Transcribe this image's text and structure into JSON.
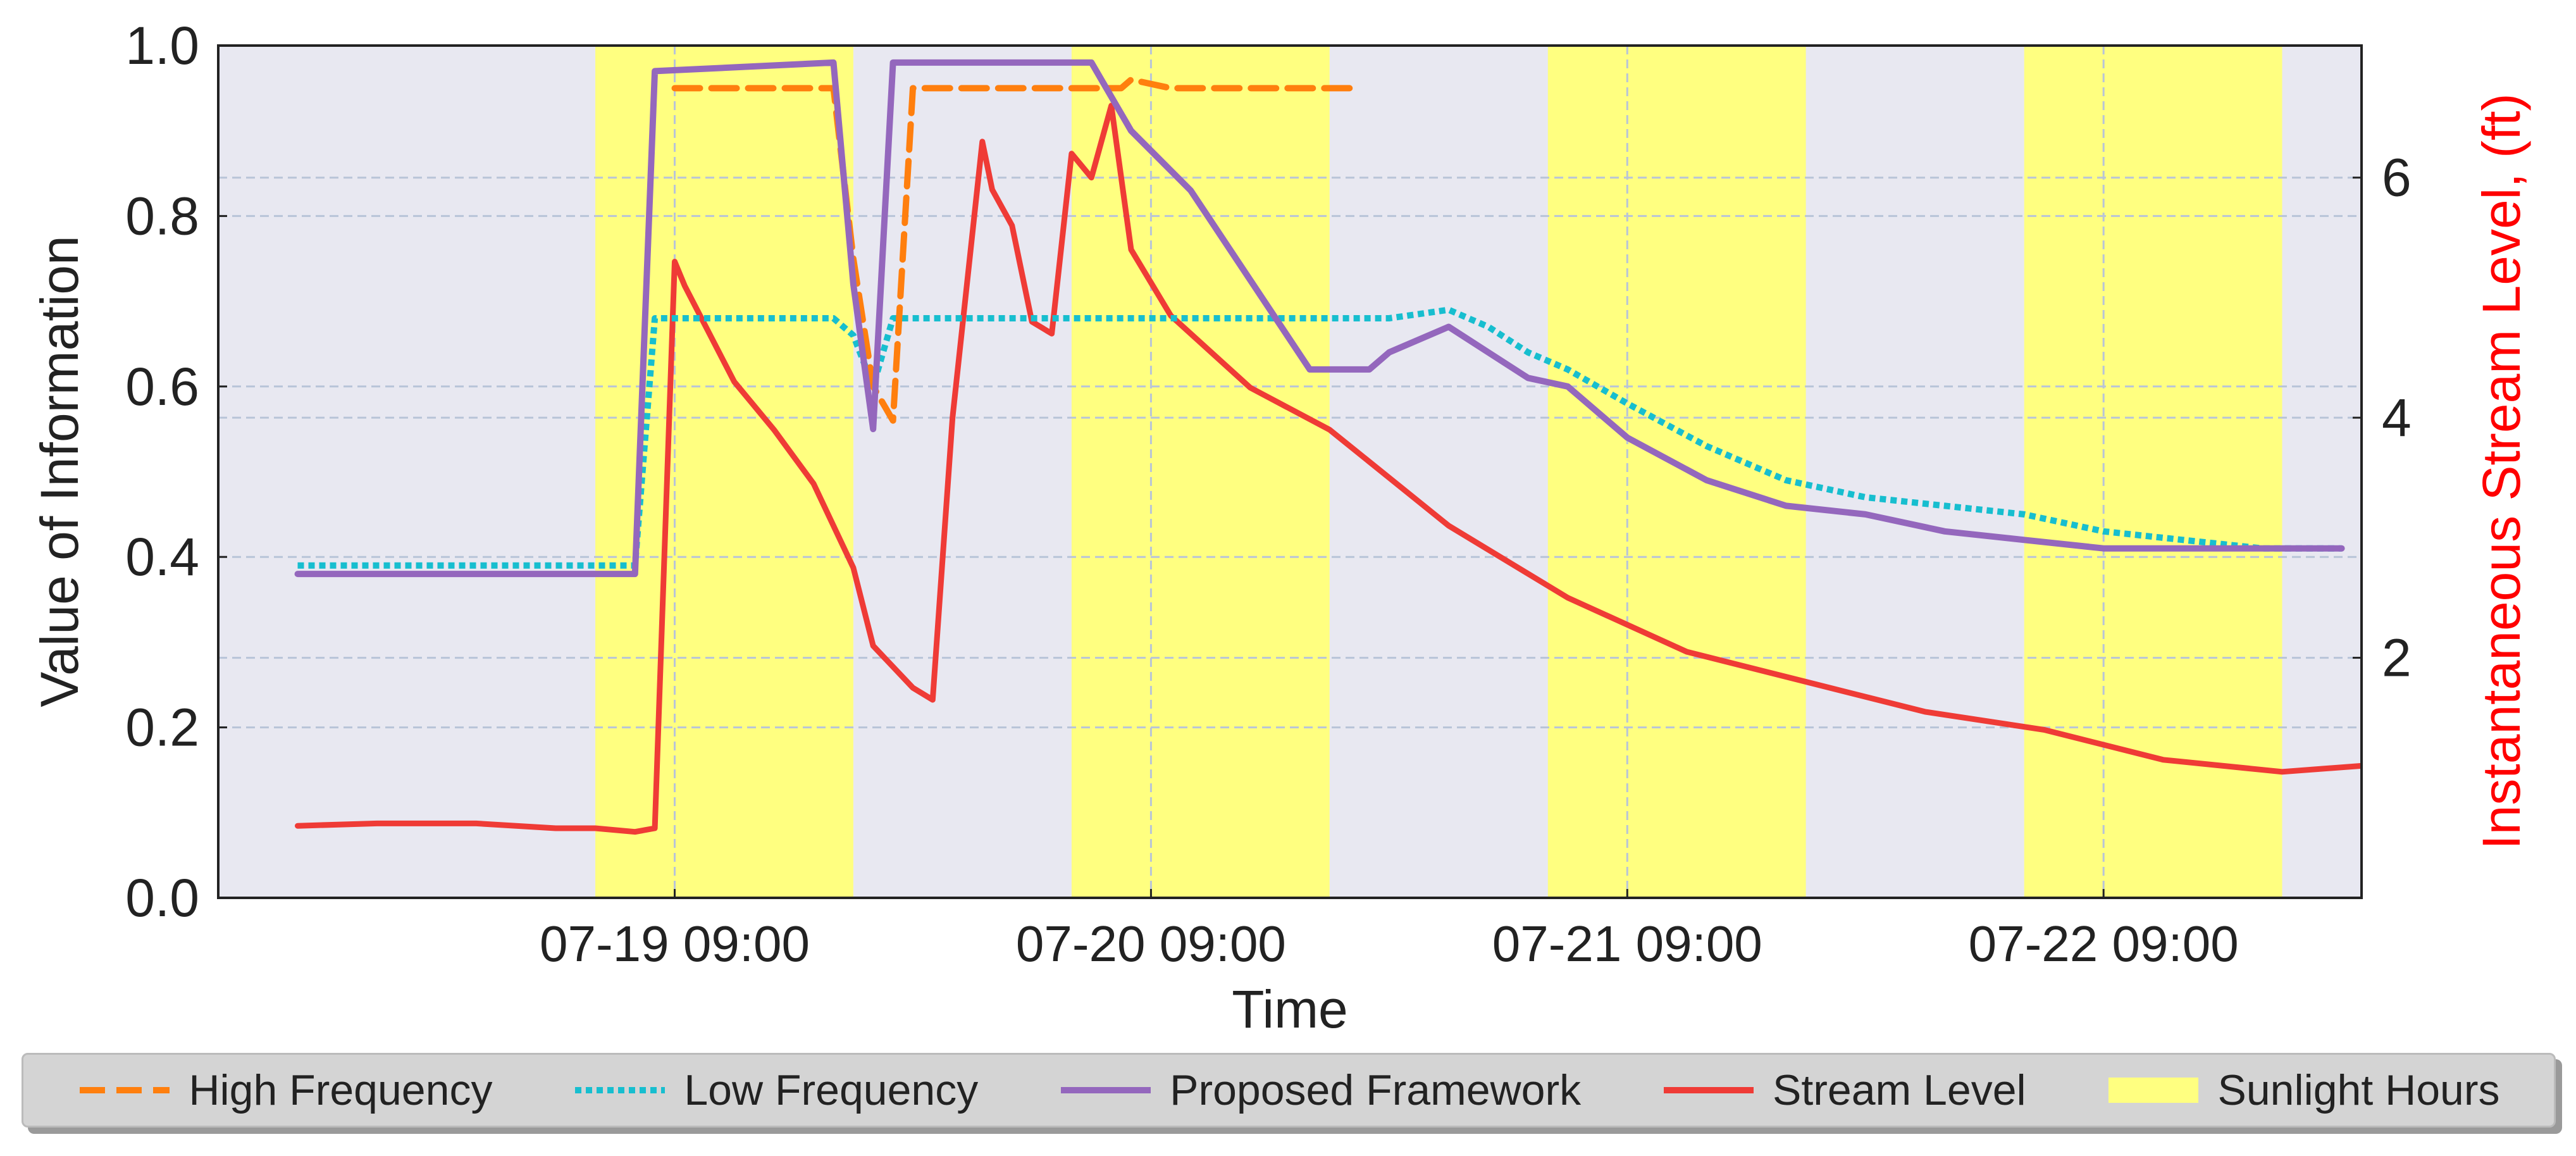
{
  "chart_data": {
    "type": "line",
    "xlabel": "Time",
    "ylabel": "Value of Information",
    "ylabel_right": "Instantaneous Stream Level, (ft)",
    "x_range": [
      "07-18 10:00",
      "07-22 22:00"
    ],
    "x_ticks": [
      "07-19 09:00",
      "07-20 09:00",
      "07-21 09:00",
      "07-22 09:00"
    ],
    "ylim": [
      0,
      1
    ],
    "y_ticks": [
      "0.0",
      "0.2",
      "0.4",
      "0.6",
      "0.8",
      "1.0"
    ],
    "ylim_right": [
      0,
      7.1
    ],
    "y_ticks_right": [
      "2",
      "4",
      "6"
    ],
    "grid": true,
    "legend_position": "bottom",
    "colors": {
      "plot_background": "#e8e8f1",
      "sunlight": "#ffff80",
      "high_frequency": "#ff7f0e",
      "low_frequency": "#17becf",
      "proposed_framework": "#9467bd",
      "stream_level": "#ef3b36",
      "grid": "#b8c4d8",
      "right_axis_label": "#ff0000"
    },
    "sunlight_hours": [
      [
        "07-19 05:00",
        "07-19 18:00"
      ],
      [
        "07-20 05:00",
        "07-20 18:00"
      ],
      [
        "07-21 05:00",
        "07-21 18:00"
      ],
      [
        "07-22 05:00",
        "07-22 18:00"
      ]
    ],
    "series": [
      {
        "name": "High Frequency",
        "axis": "left",
        "style": "dashed",
        "x": [
          "07-19 09:00",
          "07-19 17:00",
          "07-19 18:00",
          "07-19 19:00",
          "07-19 20:00",
          "07-19 21:00",
          "07-19 23:00",
          "07-20 07:30",
          "07-20 08:00",
          "07-20 10:00",
          "07-20 12:00",
          "07-20 14:00",
          "07-20 16:00",
          "07-20 18:00",
          "07-20 19:30"
        ],
        "values": [
          0.95,
          0.95,
          0.75,
          0.6,
          0.56,
          0.95,
          0.95,
          0.95,
          0.96,
          0.95,
          0.95,
          0.95,
          0.95,
          0.95,
          0.95
        ]
      },
      {
        "name": "Low Frequency",
        "axis": "left",
        "style": "dotted",
        "x": [
          "07-18 14:00",
          "07-19 07:00",
          "07-19 08:00",
          "07-19 17:00",
          "07-19 18:00",
          "07-19 19:00",
          "07-19 20:00",
          "07-20 01:00",
          "07-20 05:00",
          "07-20 09:00",
          "07-20 13:00",
          "07-20 17:00",
          "07-20 21:00",
          "07-21 00:00",
          "07-21 02:00",
          "07-21 04:00",
          "07-21 06:00",
          "07-21 09:00",
          "07-21 13:00",
          "07-21 17:00",
          "07-21 21:00",
          "07-22 01:00",
          "07-22 05:00",
          "07-22 09:00",
          "07-22 13:00",
          "07-22 17:00",
          "07-22 21:00"
        ],
        "values": [
          0.39,
          0.39,
          0.68,
          0.68,
          0.66,
          0.6,
          0.68,
          0.68,
          0.68,
          0.68,
          0.68,
          0.68,
          0.68,
          0.69,
          0.67,
          0.64,
          0.62,
          0.58,
          0.53,
          0.49,
          0.47,
          0.46,
          0.45,
          0.43,
          0.42,
          0.41,
          0.41
        ]
      },
      {
        "name": "Proposed Framework",
        "axis": "left",
        "style": "solid",
        "x": [
          "07-18 14:00",
          "07-19 07:00",
          "07-19 08:00",
          "07-19 17:00",
          "07-19 18:00",
          "07-19 19:00",
          "07-19 20:00",
          "07-19 21:00",
          "07-20 05:00",
          "07-20 06:00",
          "07-20 08:00",
          "07-20 11:00",
          "07-20 17:00",
          "07-20 20:00",
          "07-20 21:00",
          "07-21 00:00",
          "07-21 02:00",
          "07-21 04:00",
          "07-21 06:00",
          "07-21 09:00",
          "07-21 13:00",
          "07-21 17:00",
          "07-21 21:00",
          "07-22 01:00",
          "07-22 05:00",
          "07-22 09:00",
          "07-22 13:00",
          "07-22 17:00",
          "07-22 21:00"
        ],
        "values": [
          0.38,
          0.38,
          0.97,
          0.98,
          0.72,
          0.55,
          0.98,
          0.98,
          0.98,
          0.98,
          0.9,
          0.83,
          0.62,
          0.62,
          0.64,
          0.67,
          0.64,
          0.61,
          0.6,
          0.54,
          0.49,
          0.46,
          0.45,
          0.43,
          0.42,
          0.41,
          0.41,
          0.41,
          0.41
        ]
      },
      {
        "name": "Stream Level",
        "axis": "right",
        "style": "solid",
        "x": [
          "07-18 14:00",
          "07-18 18:00",
          "07-18 23:00",
          "07-19 03:00",
          "07-19 05:00",
          "07-19 07:00",
          "07-19 08:00",
          "07-19 09:00",
          "07-19 09:30",
          "07-19 12:00",
          "07-19 14:00",
          "07-19 16:00",
          "07-19 18:00",
          "07-19 19:00",
          "07-19 21:00",
          "07-19 22:00",
          "07-19 23:00",
          "07-20 00:30",
          "07-20 01:00",
          "07-20 02:00",
          "07-20 03:00",
          "07-20 04:00",
          "07-20 05:00",
          "07-20 06:00",
          "07-20 07:00",
          "07-20 08:00",
          "07-20 10:00",
          "07-20 14:00",
          "07-20 18:00",
          "07-21 00:00",
          "07-21 06:00",
          "07-21 12:00",
          "07-21 18:00",
          "07-22 00:00",
          "07-22 06:00",
          "07-22 12:00",
          "07-22 18:00",
          "07-22 22:00"
        ],
        "values": [
          0.6,
          0.62,
          0.62,
          0.58,
          0.58,
          0.55,
          0.58,
          5.3,
          5.1,
          4.3,
          3.9,
          3.45,
          2.75,
          2.1,
          1.75,
          1.65,
          4.0,
          6.3,
          5.9,
          5.6,
          4.8,
          4.7,
          6.2,
          6.0,
          6.6,
          5.4,
          4.85,
          4.25,
          3.9,
          3.1,
          2.5,
          2.05,
          1.8,
          1.55,
          1.4,
          1.15,
          1.05,
          1.1
        ]
      }
    ]
  }
}
